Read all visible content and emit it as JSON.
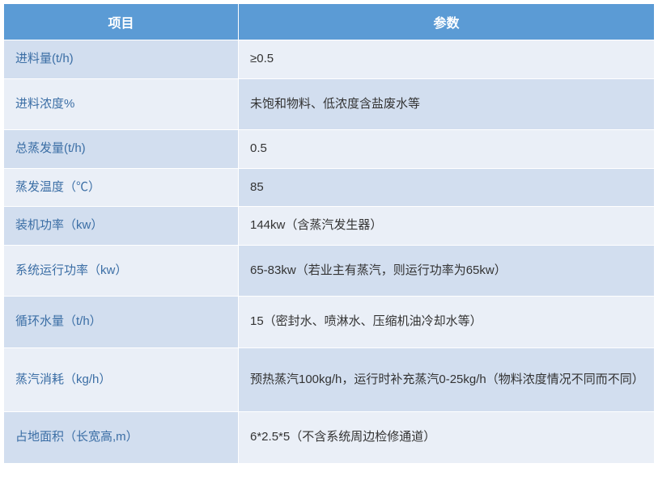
{
  "table": {
    "header_bg": "#5b9bd5",
    "header_fg": "#ffffff",
    "row_bg_a_label": "#d2deef",
    "row_bg_a_value": "#eaeff7",
    "row_bg_b_label": "#eaeff7",
    "row_bg_b_value": "#d2deef",
    "label_color": "#3b6ea5",
    "value_color": "#333333",
    "border_color": "#ffffff",
    "font_size_header": 16,
    "font_size_body": 15,
    "columns": {
      "label": "项目",
      "value": "参数"
    },
    "rows": [
      {
        "label": "进料量(t/h)",
        "value": "≥0.5"
      },
      {
        "label": "进料浓度%",
        "value": "未饱和物料、低浓度含盐废水等"
      },
      {
        "label": "总蒸发量(t/h)",
        "value": "0.5"
      },
      {
        "label": "蒸发温度（℃）",
        "value": "85"
      },
      {
        "label": "装机功率（kw）",
        "value": "144kw（含蒸汽发生器）"
      },
      {
        "label": "系统运行功率（kw）",
        "value": "65-83kw（若业主有蒸汽，则运行功率为65kw）"
      },
      {
        "label": "循环水量（t/h）",
        "value": "15（密封水、喷淋水、压缩机油冷却水等）"
      },
      {
        "label": "蒸汽消耗（kg/h）",
        "value": "预热蒸汽100kg/h，运行时补充蒸汽0-25kg/h（物料浓度情况不同而不同）"
      },
      {
        "label": "占地面积（长宽高,m）",
        "value": "6*2.5*5（不含系统周边检修通道）"
      }
    ]
  }
}
